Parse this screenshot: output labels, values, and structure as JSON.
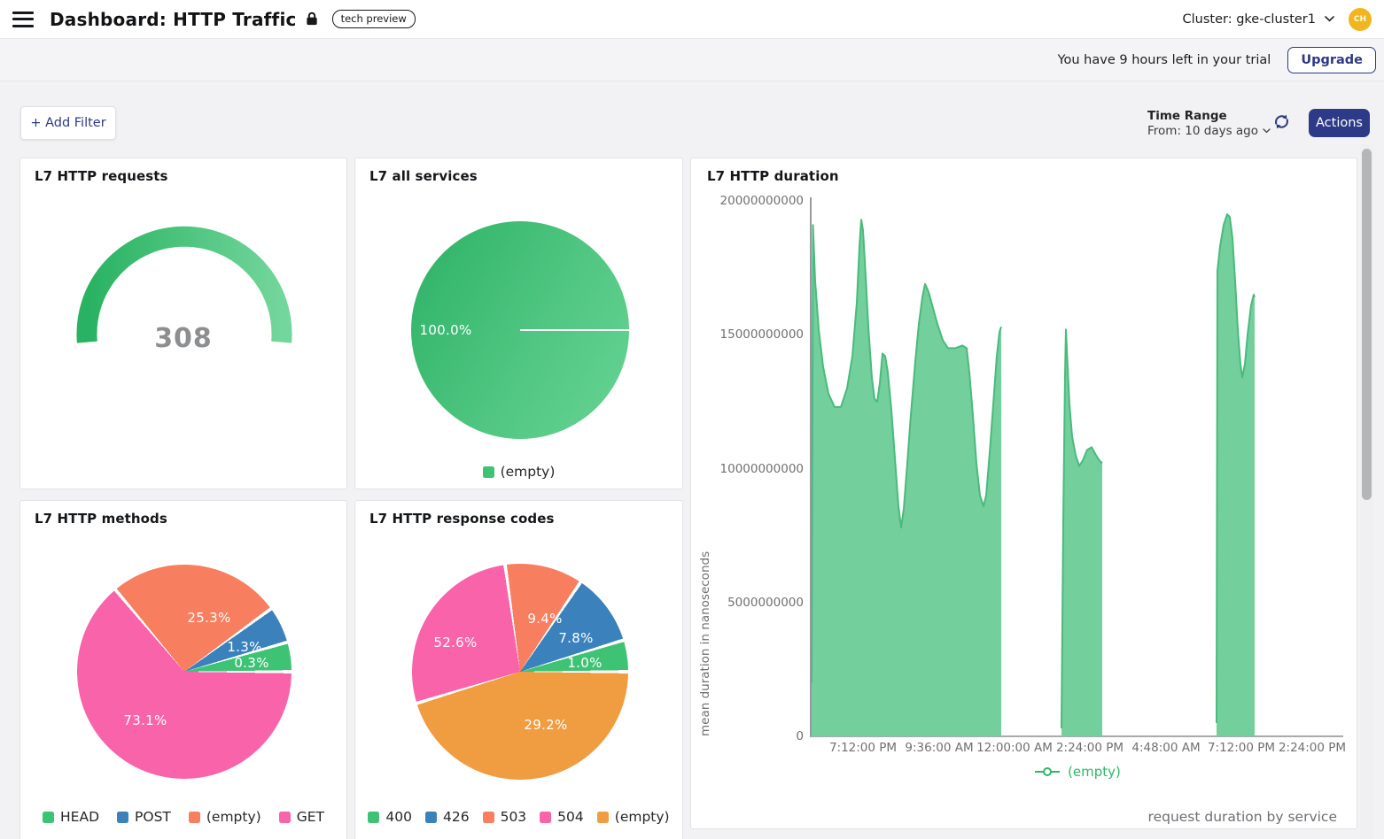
{
  "header": {
    "title": "Dashboard: HTTP Traffic",
    "badge": "tech preview",
    "cluster_label": "Cluster: gke-cluster1",
    "avatar_initials": "CH"
  },
  "banner": {
    "trial_text": "You have 9 hours left in your trial",
    "upgrade_label": "Upgrade"
  },
  "toolbar": {
    "add_filter_label": "+ Add Filter",
    "time_range_title": "Time Range",
    "time_range_value": "From: 10 days ago",
    "actions_label": "Actions"
  },
  "colors": {
    "accent_navy": "#2d3a87",
    "green": "#3ec374",
    "blue": "#3b82bc",
    "salmon": "#f87e60",
    "pink": "#f963a9",
    "orange": "#f09d41",
    "area_fill": "#73cf9b",
    "area_stroke": "#4aba7d",
    "avatar_yellow": "#f1b61f"
  },
  "panels": {
    "requests": {
      "title": "L7 HTTP requests",
      "value": "308"
    },
    "services": {
      "title": "L7 all services",
      "pct_label": "100.0%",
      "legend": [
        {
          "label": "(empty)",
          "color": "#3ec374"
        }
      ]
    },
    "methods": {
      "title": "L7 HTTP methods",
      "slices": [
        {
          "label": "(empty)",
          "color": "#f87e60",
          "pct": "25.3%",
          "start": -40,
          "end": 54
        },
        {
          "label": "POST",
          "color": "#3b82bc",
          "pct": "1.3%",
          "start": 54,
          "end": 74
        },
        {
          "label": "HEAD",
          "color": "#3ec374",
          "pct": "0.3%",
          "start": 74,
          "end": 90
        },
        {
          "label": "GET",
          "color": "#f963a9",
          "pct": "73.1%",
          "start": 90,
          "end": 320
        }
      ],
      "legend": [
        {
          "label": "HEAD",
          "color": "#3ec374"
        },
        {
          "label": "POST",
          "color": "#3b82bc"
        },
        {
          "label": "(empty)",
          "color": "#f87e60"
        },
        {
          "label": "GET",
          "color": "#f963a9"
        }
      ]
    },
    "codes": {
      "title": "L7 HTTP response codes",
      "slices": [
        {
          "label": "503",
          "color": "#f87e60",
          "pct": "9.4%",
          "start": -8,
          "end": 34
        },
        {
          "label": "426",
          "color": "#3b82bc",
          "pct": "7.8%",
          "start": 34,
          "end": 73
        },
        {
          "label": "400",
          "color": "#3ec374",
          "pct": "1.0%",
          "start": 73,
          "end": 90
        },
        {
          "label": "(empty)",
          "color": "#f09d41",
          "pct": "52.6%",
          "start": 90,
          "end": 253
        },
        {
          "label": "504",
          "color": "#f963a9",
          "pct": "29.2%",
          "start": 253,
          "end": 352
        }
      ],
      "legend": [
        {
          "label": "400",
          "color": "#3ec374"
        },
        {
          "label": "426",
          "color": "#3b82bc"
        },
        {
          "label": "503",
          "color": "#f87e60"
        },
        {
          "label": "504",
          "color": "#f963a9"
        },
        {
          "label": "(empty)",
          "color": "#f09d41"
        }
      ]
    },
    "duration": {
      "title": "L7 HTTP duration",
      "ylabel": "mean duration in nanoseconds",
      "legend_label": "(empty)",
      "caption": "request duration by service"
    }
  },
  "chart_data": [
    {
      "name": "l7-http-requests",
      "type": "gauge",
      "title": "L7 HTTP requests",
      "value": 308
    },
    {
      "name": "l7-all-services",
      "type": "pie",
      "title": "L7 all services",
      "labels": [
        "(empty)"
      ],
      "values_pct": [
        100.0
      ]
    },
    {
      "name": "l7-http-methods",
      "type": "pie",
      "title": "L7 HTTP methods",
      "labels": [
        "HEAD",
        "POST",
        "(empty)",
        "GET"
      ],
      "values_pct": [
        0.3,
        1.3,
        25.3,
        73.1
      ]
    },
    {
      "name": "l7-http-response-codes",
      "type": "pie",
      "title": "L7 HTTP response codes",
      "labels": [
        "400",
        "426",
        "503",
        "504",
        "(empty)"
      ],
      "values_pct": [
        1.0,
        7.8,
        9.4,
        29.2,
        52.6
      ]
    },
    {
      "name": "l7-http-duration",
      "type": "area",
      "title": "L7 HTTP duration",
      "ylabel": "mean duration in nanoseconds",
      "series": "(empty)",
      "ylim": [
        0,
        20000000000
      ],
      "ymax_e9": 20,
      "yticks": [
        "20000000000",
        "15000000000",
        "10000000000",
        "5000000000",
        "0"
      ],
      "xticks": [
        "7:12:00 PM",
        "9:36:00 AM",
        "12:00:00 AM",
        "2:24:00 PM",
        "4:48:00 AM",
        "7:12:00 PM",
        "2:24:00 PM"
      ],
      "caption": "request duration by service",
      "segments_e9": [
        [
          [
            0,
            2
          ],
          [
            1.5,
            19.1
          ],
          [
            4,
            17.0
          ],
          [
            8,
            15.2
          ],
          [
            13,
            13.8
          ],
          [
            19,
            12.8
          ],
          [
            26,
            12.3
          ],
          [
            33,
            12.3
          ],
          [
            40,
            13.0
          ],
          [
            46,
            14.2
          ],
          [
            51,
            16.2
          ],
          [
            54,
            18.3
          ],
          [
            56,
            19.3
          ],
          [
            58,
            18.9
          ],
          [
            61,
            17.2
          ],
          [
            64,
            15.3
          ],
          [
            68,
            13.4
          ],
          [
            71,
            12.6
          ],
          [
            74,
            12.5
          ],
          [
            77,
            13.2
          ],
          [
            80,
            14.3
          ],
          [
            83,
            14.2
          ],
          [
            86,
            13.6
          ],
          [
            90,
            12.2
          ],
          [
            94,
            10.4
          ],
          [
            98,
            8.6
          ],
          [
            101,
            7.8
          ],
          [
            104,
            8.5
          ],
          [
            108,
            10.2
          ],
          [
            112,
            12.0
          ],
          [
            117,
            14.0
          ],
          [
            121,
            15.4
          ],
          [
            125,
            16.4
          ],
          [
            128,
            16.9
          ],
          [
            132,
            16.6
          ],
          [
            137,
            16.0
          ],
          [
            142,
            15.4
          ],
          [
            148,
            14.8
          ],
          [
            154,
            14.5
          ],
          [
            162,
            14.5
          ],
          [
            170,
            14.6
          ],
          [
            175,
            14.5
          ],
          [
            178,
            13.6
          ],
          [
            182,
            12.0
          ],
          [
            186,
            10.2
          ],
          [
            190,
            9.0
          ],
          [
            194,
            8.6
          ],
          [
            197,
            9.0
          ],
          [
            201,
            10.6
          ],
          [
            205,
            12.4
          ],
          [
            209,
            14.2
          ],
          [
            212,
            15.1
          ],
          [
            214,
            15.3
          ]
        ],
        [
          [
            282,
            0.3
          ],
          [
            284,
            8.0
          ],
          [
            286,
            13.5
          ],
          [
            287,
            15.2
          ],
          [
            289,
            13.8
          ],
          [
            291,
            12.4
          ],
          [
            294,
            11.2
          ],
          [
            298,
            10.5
          ],
          [
            302,
            10.1
          ],
          [
            306,
            10.3
          ],
          [
            311,
            10.7
          ],
          [
            316,
            10.8
          ],
          [
            321,
            10.5
          ],
          [
            325,
            10.3
          ],
          [
            328,
            10.2
          ]
        ],
        [
          [
            457,
            0.5
          ],
          [
            458,
            17.4
          ],
          [
            461,
            18.3
          ],
          [
            465,
            19.1
          ],
          [
            469,
            19.5
          ],
          [
            472,
            19.4
          ],
          [
            475,
            18.6
          ],
          [
            478,
            17.0
          ],
          [
            481,
            15.2
          ],
          [
            484,
            13.9
          ],
          [
            486,
            13.4
          ],
          [
            489,
            13.9
          ],
          [
            492,
            15.0
          ],
          [
            496,
            16.1
          ],
          [
            499,
            16.5
          ],
          [
            500,
            16.4
          ]
        ]
      ]
    }
  ]
}
